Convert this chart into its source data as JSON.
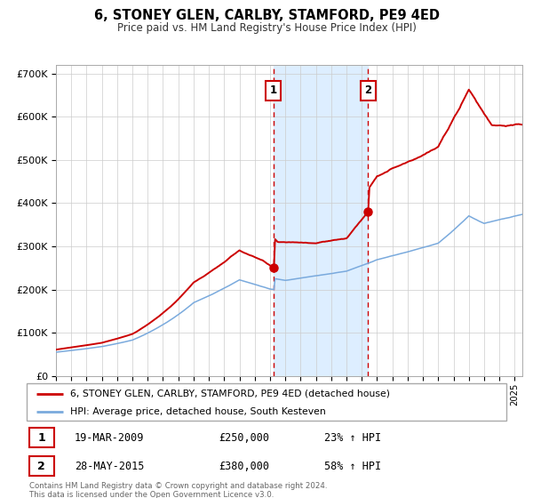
{
  "title": "6, STONEY GLEN, CARLBY, STAMFORD, PE9 4ED",
  "subtitle": "Price paid vs. HM Land Registry's House Price Index (HPI)",
  "legend_line1": "6, STONEY GLEN, CARLBY, STAMFORD, PE9 4ED (detached house)",
  "legend_line2": "HPI: Average price, detached house, South Kesteven",
  "footer1": "Contains HM Land Registry data © Crown copyright and database right 2024.",
  "footer2": "This data is licensed under the Open Government Licence v3.0.",
  "annotation1": {
    "label": "1",
    "date": "19-MAR-2009",
    "price": "£250,000",
    "hpi": "23% ↑ HPI",
    "year": 2009.21
  },
  "annotation2": {
    "label": "2",
    "date": "28-MAY-2015",
    "price": "£380,000",
    "hpi": "58% ↑ HPI",
    "year": 2015.41
  },
  "shaded_region": [
    2009.21,
    2015.41
  ],
  "red_color": "#cc0000",
  "blue_color": "#7aaadd",
  "shade_color": "#ddeeff",
  "grid_color": "#cccccc",
  "ylim": [
    0,
    720000
  ],
  "xlim": [
    1995.0,
    2025.5
  ],
  "marker1_price": 250000,
  "marker2_price": 380000
}
